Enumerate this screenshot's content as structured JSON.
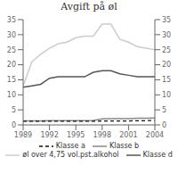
{
  "chart_data": {
    "type": "line",
    "title": "Avgift på øl",
    "x": [
      1989,
      1990,
      1991,
      1992,
      1993,
      1994,
      1995,
      1996,
      1997,
      1998,
      1999,
      2000,
      2001,
      2002,
      2003,
      2004
    ],
    "series": [
      {
        "name": "Klasse a",
        "color": "#111111",
        "line_style": "dashed",
        "values": [
          1.2,
          1.2,
          1.2,
          1.2,
          1.2,
          1.2,
          1.2,
          1.2,
          1.2,
          1.3,
          1.3,
          1.3,
          1.3,
          1.4,
          1.4,
          1.5
        ]
      },
      {
        "name": "Klasse b",
        "color": "#888888",
        "line_style": "solid",
        "values": [
          1.3,
          1.3,
          1.3,
          1.4,
          1.4,
          1.4,
          1.4,
          1.4,
          1.5,
          2.0,
          2.1,
          2.1,
          2.1,
          2.2,
          2.2,
          2.3
        ]
      },
      {
        "name": "øl over 4,75 vol.pst.alkohol",
        "color": "#cccccc",
        "line_style": "solid",
        "values": [
          13.0,
          21.0,
          23.5,
          25.5,
          27.0,
          27.5,
          29.0,
          29.5,
          29.5,
          33.5,
          33.5,
          28.5,
          27.5,
          26.0,
          25.5,
          25.0
        ]
      },
      {
        "name": "Klasse d",
        "color": "#555555",
        "line_style": "solid",
        "values": [
          12.5,
          13.0,
          13.5,
          15.5,
          16.0,
          16.0,
          16.0,
          16.0,
          17.5,
          18.0,
          18.0,
          17.0,
          16.5,
          16.0,
          16.0,
          16.0
        ]
      }
    ],
    "xlim": [
      1989,
      2004
    ],
    "xticks": [
      1989,
      1992,
      1995,
      1998,
      2001,
      2004
    ],
    "ylim": [
      0,
      35
    ],
    "yticks": [
      0,
      5,
      10,
      15,
      20,
      25,
      30,
      35
    ],
    "y2lim": [
      0,
      35
    ],
    "y2ticks": [
      0,
      5,
      10,
      15,
      20,
      25,
      30,
      35
    ],
    "grid": false,
    "legend": "bottom"
  }
}
